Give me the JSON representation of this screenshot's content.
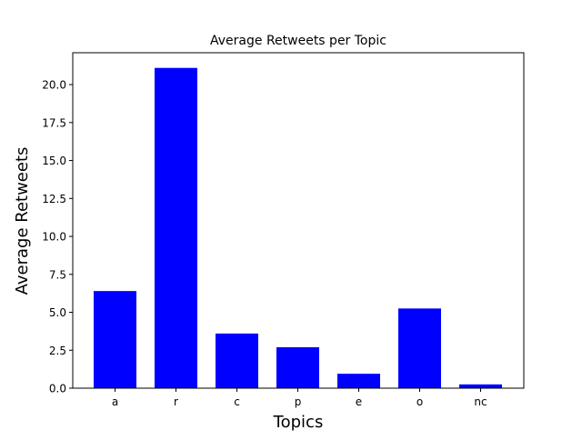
{
  "chart_data": {
    "type": "bar",
    "title": "Average Retweets per Topic",
    "xlabel": "Topics",
    "ylabel": "Average Retweets",
    "categories": [
      "a",
      "r",
      "c",
      "p",
      "e",
      "o",
      "nc"
    ],
    "values": [
      6.4,
      21.1,
      3.6,
      2.7,
      0.95,
      5.25,
      0.25
    ],
    "ylim": [
      0,
      22.1
    ],
    "yticks": [
      0.0,
      2.5,
      5.0,
      7.5,
      10.0,
      12.5,
      15.0,
      17.5,
      20.0
    ],
    "ytick_labels": [
      "0.0",
      "2.5",
      "5.0",
      "7.5",
      "10.0",
      "12.5",
      "15.0",
      "17.5",
      "20.0"
    ],
    "bar_color": "#0000ff",
    "grid": false,
    "legend": "none"
  }
}
